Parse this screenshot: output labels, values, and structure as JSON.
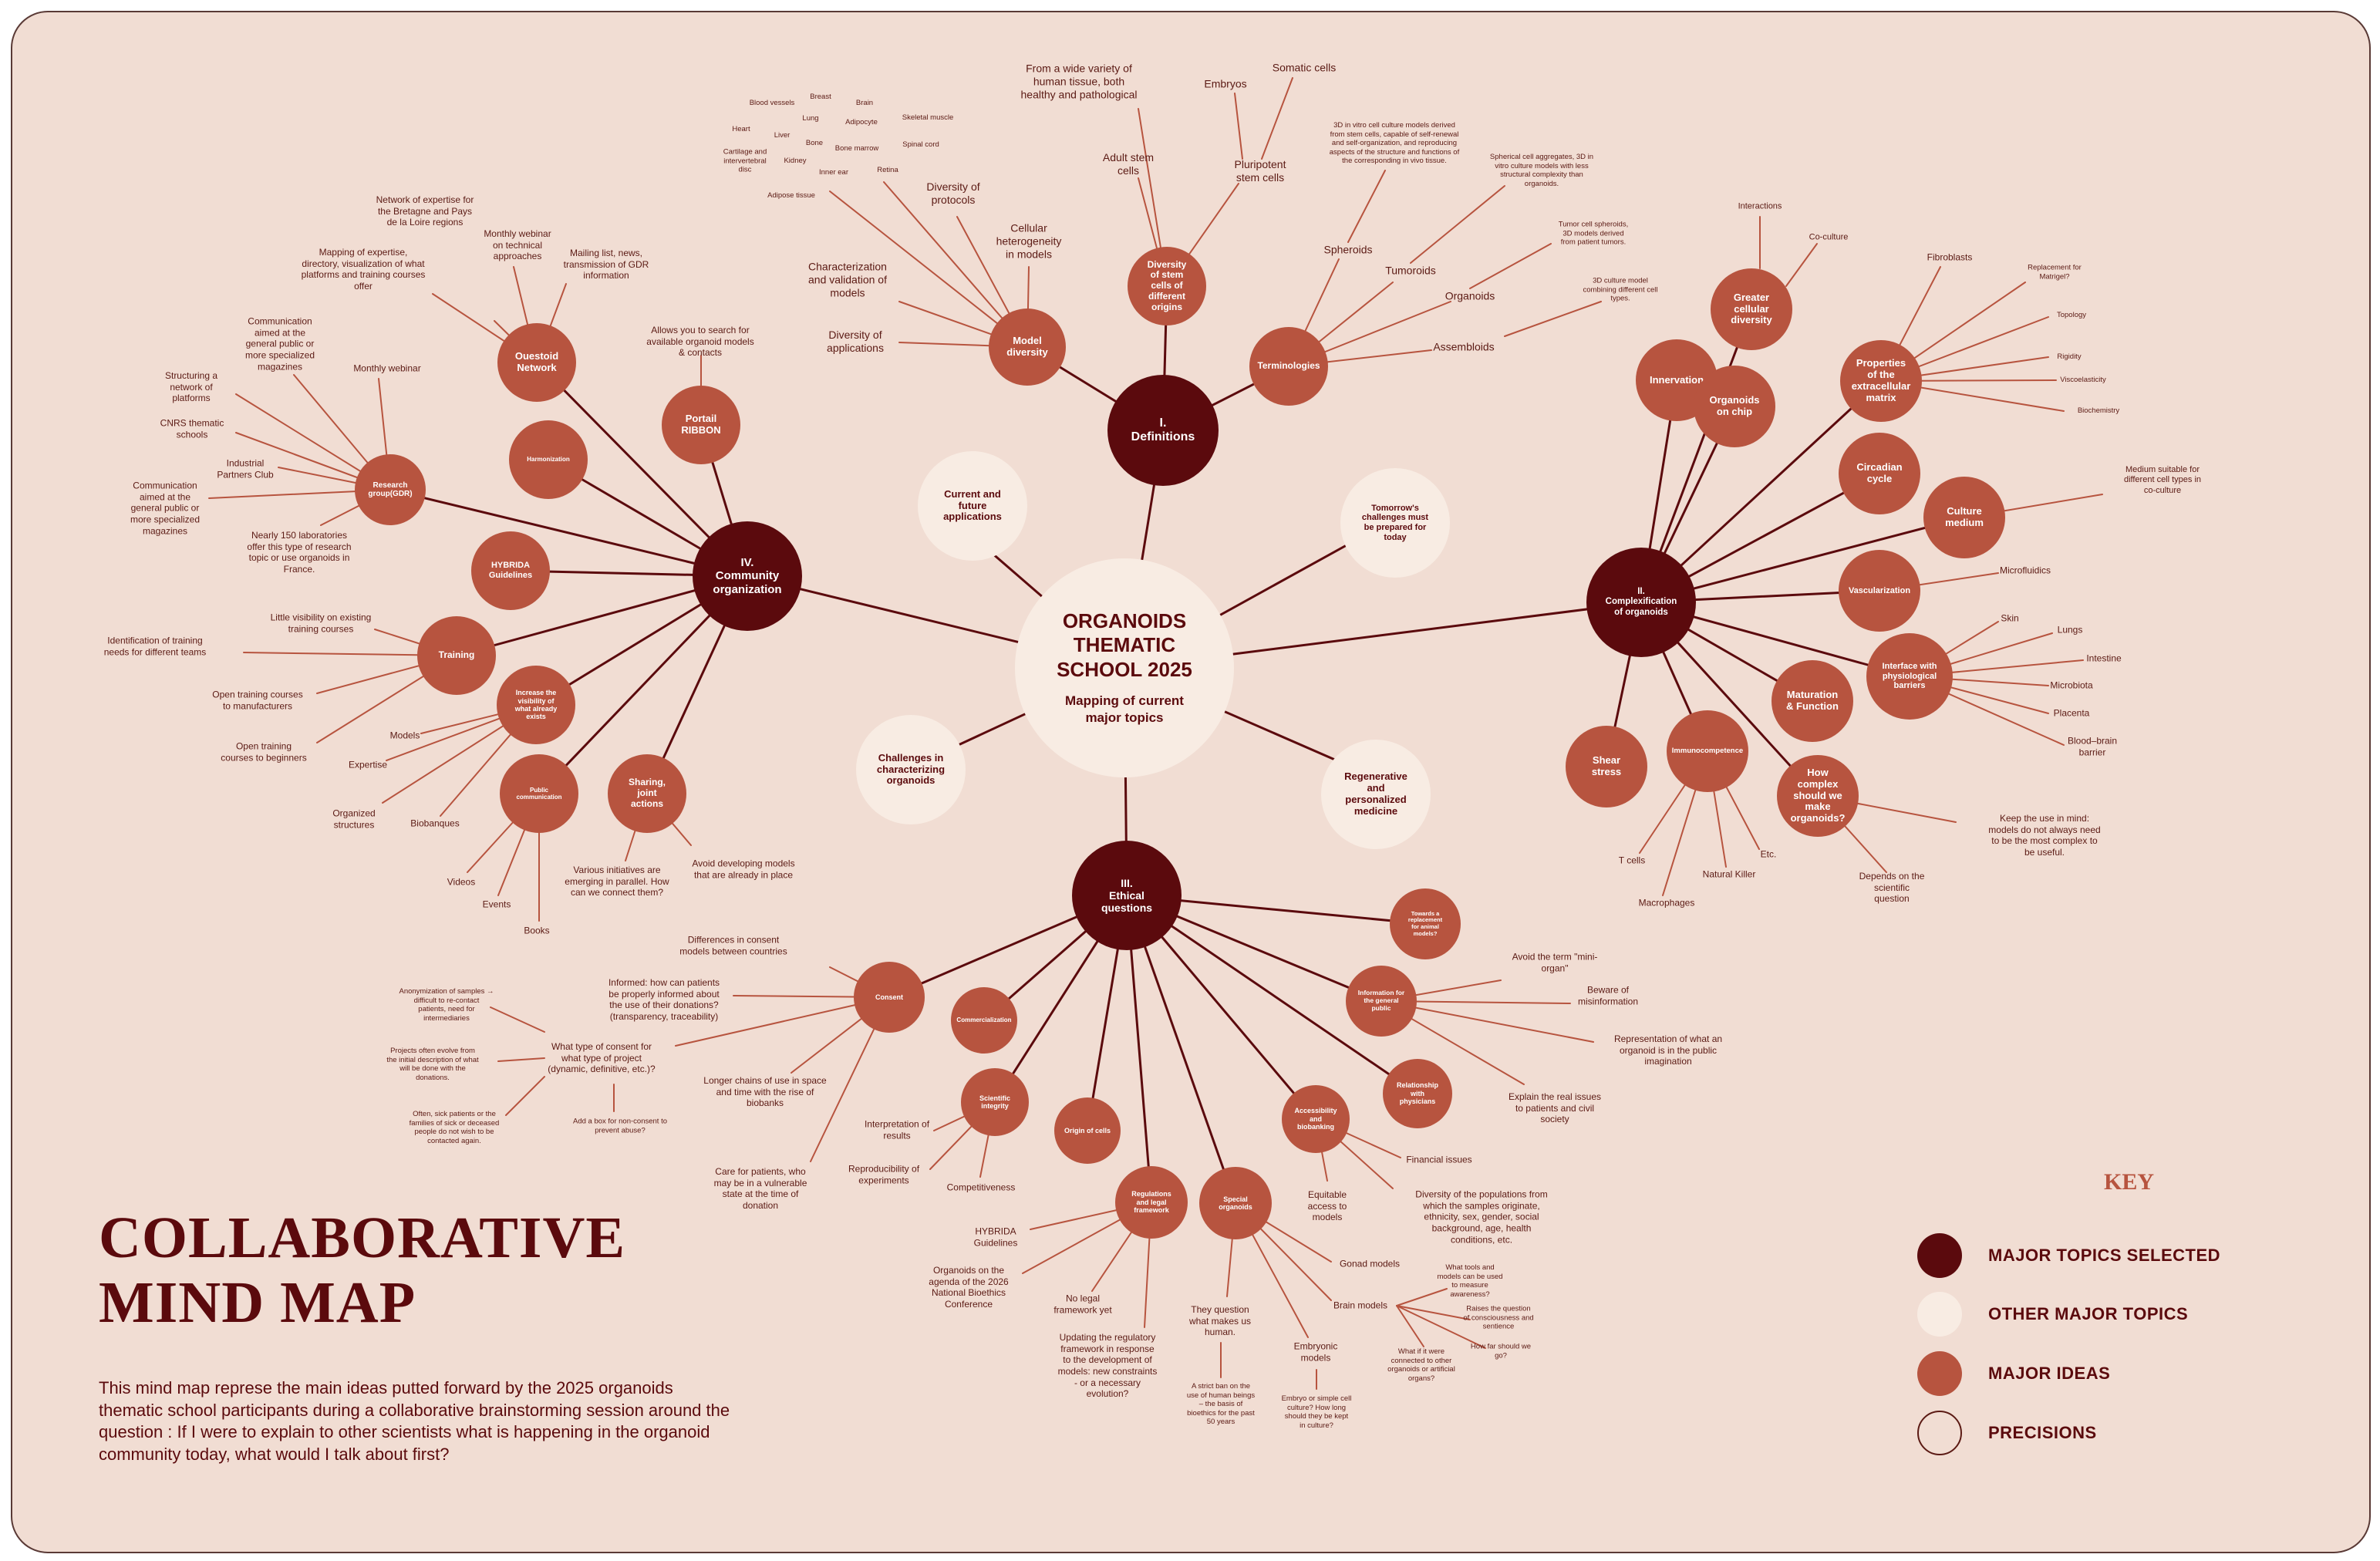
{
  "title": "COLLABORATIVE\nMIND MAP",
  "description": "This mind map represe the main ideas putted forward by the 2025 organoids thematic school participants during a collaborative brainstorming session around the question : If I were to explain to other scientists what is happening in the organoid community today, what would I talk about first?",
  "colors": {
    "major_selected": "#5b0a0d",
    "other_major": "#f8ece3",
    "major_idea": "#b7543f",
    "background": "#f1ddd3",
    "line": "#b7543f",
    "trunk": "#5b0a0d"
  },
  "key": {
    "title": "KEY",
    "items": [
      {
        "label": "MAJOR TOPICS SELECTED",
        "color": "#5b0a0d"
      },
      {
        "label": "OTHER MAJOR TOPICS",
        "color": "#f8ece3"
      },
      {
        "label": "MAJOR IDEAS",
        "color": "#b7543f"
      },
      {
        "label": "PRECISIONS",
        "color": "none"
      }
    ]
  },
  "center": {
    "title": "ORGANOIDS\nTHEMATIC\nSCHOOL 2025",
    "subtitle": "Mapping of current\nmajor topics"
  },
  "other_topics": [
    "Current and\nfuture\napplications",
    "Tomorrow's\nchallenges must\nbe prepared for\ntoday",
    "Challenges in\ncharacterizing\norganoids",
    "Regenerative\nand\npersonalized\nmedicine"
  ],
  "major_topics": [
    "I.\nDefinitions",
    "II.\nComplexification\nof organoids",
    "III.\nEthical\nquestions",
    "IV.\nCommunity\norganization"
  ],
  "ideas": {
    "I": [
      "Model\ndiversity",
      "Diversity\nof stem\ncells of\ndifferent\norigins",
      "Terminologies"
    ],
    "II": [
      "Greater\ncellular\ndiversity",
      "Innervation",
      "Organoids\non chip",
      "Properties\nof the\nextracellular\nmatrix",
      "Circadian\ncycle",
      "Culture\nmedium",
      "Vascularization",
      "Interface with\nphysiological\nbarriers",
      "Maturation\n& Function",
      "How\ncomplex\nshould we\nmake\norganoids?",
      "Immunocompetence",
      "Shear\nstress"
    ],
    "III": [
      "Consent",
      "Commercialization",
      "Scientific\nintegrity",
      "Origin of cells",
      "Regulations\nand legal\nframework",
      "Special\norganoids",
      "Accessibility\nand\nbiobanking",
      "Relationship\nwith\nphysicians",
      "Information for\nthe general\npublic",
      "Towards a\nreplacement\nfor animal\nmodels?"
    ],
    "IV": [
      "Ouestoid\nNetwork",
      "Portail\nRIBBON",
      "Harmonization",
      "Research\ngroup(GDR)",
      "HYBRIDA\nGuidelines",
      "Training",
      "Increase the\nvisibility of\nwhat already\nexists",
      "Public\ncommunication",
      "Sharing,\njoint\nactions"
    ]
  },
  "precisions": {
    "model_diversity": [
      "Diversity of\napplications",
      "Characterization\nand validation of\nmodels",
      "Diversity of\nprotocols",
      "Cellular\nheterogeneity\nin models"
    ],
    "tissues": [
      "Blood vessels",
      "Breast",
      "Brain",
      "Lung",
      "Adipocyte",
      "Skeletal muscle",
      "Heart",
      "Liver",
      "Bone",
      "Bone marrow",
      "Spinal cord",
      "Cartilage and\nintervertebral\ndisc",
      "Kidney",
      "Inner ear",
      "Retina",
      "Adipose tissue"
    ],
    "stem_cells": [
      "From a wide variety of\nhuman tissue, both\nhealthy and pathological",
      "Adult stem\ncells",
      "Embryos",
      "Somatic cells",
      "Pluripotent\nstem cells"
    ],
    "terminologies": [
      "Spheroids",
      "Tumoroids",
      "Organoids",
      "Assembloids",
      "3D in vitro cell culture models derived\nfrom stem cells, capable of self-renewal\nand self-organization, and reproducing\naspects of the structure and functions of\nthe corresponding in vivo tissue.",
      "Spherical cell aggregates, 3D in\nvitro culture models with less\nstructural complexity than\norganoids.",
      "Tumor cell spheroids,\n3D models derived\nfrom patient tumors.",
      "3D culture model\ncombining different cell\ntypes."
    ],
    "complexification": [
      "Interactions",
      "Co-culture",
      "Fibroblasts",
      "Replacement for\nMatrigel?",
      "Topology",
      "Rigidity",
      "Viscoelasticity",
      "Biochemistry",
      "Medium suitable for\ndifferent cell types in\nco-culture",
      "Microfluidics",
      "Skin",
      "Lungs",
      "Intestine",
      "Microbiota",
      "Placenta",
      "Blood–brain\nbarrier",
      "Keep the use in mind:\nmodels do not always need\nto be the most complex to\nbe useful.",
      "Depends on the\nscientific\nquestion",
      "T cells",
      "Macrophages",
      "Natural Killer",
      "Etc."
    ],
    "community": [
      "Network of expertise for\nthe Bretagne and Pays\nde la Loire regions",
      "Mapping of expertise,\ndirectory, visualization of what\nplatforms and training courses\noffer",
      "Monthly webinar\non technical\napproaches",
      "Mailing list, news,\ntransmission of GDR\ninformation",
      "Allows you to search for\navailable organoid models\n& contacts",
      "Communication\naimed at the\ngeneral public or\nmore specialized\nmagazines",
      "Monthly webinar",
      "Structuring a\nnetwork of\nplatforms",
      "CNRS thematic\nschools",
      "Industrial\nPartners Club",
      "Communication\naimed at the\ngeneral public or\nmore specialized\nmagazines",
      "Nearly 150 laboratories\noffer this type of research\ntopic or use organoids in\nFrance.",
      "Little visibility on existing\ntraining courses",
      "Identification of training\nneeds for different teams",
      "Open training courses\nto manufacturers",
      "Open training\ncourses to beginners",
      "Models",
      "Expertise",
      "Organized\nstructures",
      "Biobanques",
      "Videos",
      "Events",
      "Books",
      "Various initiatives are\nemerging in parallel. How\ncan we connect them?",
      "Avoid developing models\nthat are already in place"
    ],
    "ethics": [
      "Differences in consent\nmodels between countries",
      "Informed: how can patients\nbe properly informed about\nthe use of their donations?\n(transparency, traceability)",
      "What type of consent for\nwhat type of project\n(dynamic, definitive, etc.)?",
      "Anonymization of samples →\ndifficult to re-contact\npatients, need for\nintermediaries",
      "Projects often evolve from\nthe initial description of what\nwill be done with the\ndonations.",
      "Often, sick patients or the\nfamilies of sick or deceased\npeople do not wish to be\ncontacted again.",
      "Add a box for non-consent to\nprevent abuse?",
      "Longer chains of use in space\nand time with the rise of\nbiobanks",
      "Care for patients, who\nmay be in a vulnerable\nstate at the time of\ndonation",
      "Interpretation of\nresults",
      "Reproducibility of\nexperiments",
      "Competitiveness",
      "HYBRIDA\nGuidelines",
      "Organoids on the\nagenda of the 2026\nNational Bioethics\nConference",
      "No legal\nframework yet",
      "Updating the regulatory\nframework in response\nto the development of\nmodels: new constraints\n- or a necessary\nevolution?",
      "They question\nwhat makes us\nhuman.",
      "A strict ban on the\nuse of human beings\n– the basis of\nbioethics for the past\n50 years",
      "Embryonic\nmodels",
      "Embryo or simple cell\nculture? How long\nshould they be kept\nin culture?",
      "Gonad models",
      "Brain models",
      "What tools and\nmodels can be used\nto measure\nawareness?",
      "Raises the question\nof consciousness and\nsentience",
      "How far should we\ngo?",
      "What if it were\nconnected to other\norganoids or artificial\norgans?",
      "Equitable\naccess to\nmodels",
      "Financial issues",
      "Diversity of the populations from\nwhich the samples originate,\nethnicity, sex, gender, social\nbackground, age, health\nconditions, etc.",
      "Avoid the term \"mini-\norgan\"",
      "Beware of\nmisinformation",
      "Representation of what an\norganoid is in the public\nimagination",
      "Explain the real issues\nto patients and civil\nsociety"
    ]
  }
}
